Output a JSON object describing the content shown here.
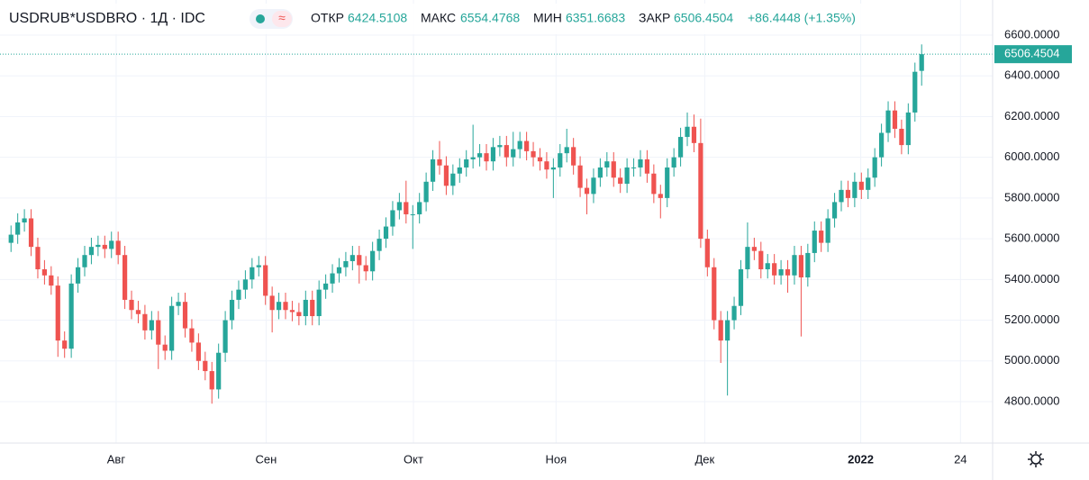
{
  "header": {
    "symbol": "USDRUB*USDBRO · 1Д · IDC",
    "open_label": "ОТКР",
    "open": "6424.5108",
    "high_label": "МАКС",
    "high": "6554.4768",
    "low_label": "МИН",
    "low": "6351.6683",
    "close_label": "ЗАКР",
    "close": "6506.4504",
    "change": "+86.4448 (+1.35%)",
    "last_price": "6506.4504"
  },
  "chart_data": {
    "type": "candlestick",
    "up_color": "#26a69a",
    "down_color": "#ef5350",
    "grid": true,
    "xlim": [
      -0.3,
      146.6
    ],
    "xticks": [
      {
        "value": 15.7,
        "label": "Авг"
      },
      {
        "value": 38.1,
        "label": "Сен"
      },
      {
        "value": 60.1,
        "label": "Окт"
      },
      {
        "value": 81.4,
        "label": "Ноя"
      },
      {
        "value": 103.6,
        "label": "Дек"
      },
      {
        "value": 126.9,
        "label": "2022"
      },
      {
        "value": 141.8,
        "label": "24"
      }
    ],
    "ylim": [
      4596.5,
      6772.5
    ],
    "yticks": [
      {
        "value": 4800,
        "label": "4800.0000"
      },
      {
        "value": 5000,
        "label": "5000.0000"
      },
      {
        "value": 5200,
        "label": "5200.0000"
      },
      {
        "value": 5400,
        "label": "5400.0000"
      },
      {
        "value": 5600,
        "label": "5600.0000"
      },
      {
        "value": 5800,
        "label": "5800.0000"
      },
      {
        "value": 6000,
        "label": "6000.0000"
      },
      {
        "value": 6200,
        "label": "6200.0000"
      },
      {
        "value": 6400,
        "label": "6400.0000"
      },
      {
        "value": 6600,
        "label": "6600.0000"
      }
    ],
    "open": [
      5580,
      5620,
      5680,
      5700,
      5560,
      5450,
      5420,
      5370,
      5100,
      5060,
      5380,
      5460,
      5520,
      5560,
      5570,
      5550,
      5590,
      5520,
      5300,
      5250,
      5230,
      5150,
      5200,
      5080,
      5050,
      5270,
      5290,
      5160,
      5090,
      5000,
      4950,
      4860,
      5040,
      5200,
      5300,
      5350,
      5400,
      5460,
      5470,
      5320,
      5250,
      5290,
      5250,
      5240,
      5220,
      5300,
      5220,
      5350,
      5380,
      5430,
      5460,
      5490,
      5520,
      5470,
      5440,
      5540,
      5600,
      5660,
      5740,
      5780,
      5720,
      5720,
      5780,
      5880,
      5990,
      5960,
      5860,
      5920,
      5950,
      5990,
      6000,
      6020,
      5980,
      6050,
      6060,
      6000,
      6040,
      6080,
      6030,
      6000,
      5980,
      5940,
      5950,
      6020,
      6050,
      5960,
      5850,
      5820,
      5900,
      5950,
      5980,
      5900,
      5870,
      5950,
      5950,
      5990,
      5920,
      5820,
      5800,
      5950,
      6000,
      6100,
      6150,
      6070,
      5600,
      5460,
      5200,
      5100,
      5200,
      5270,
      5450,
      5560,
      5540,
      5450,
      5480,
      5420,
      5450,
      5420,
      5520,
      5410,
      5530,
      5640,
      5580,
      5700,
      5780,
      5840,
      5800,
      5880,
      5840,
      5900,
      6000,
      6120,
      6230,
      6140,
      6060,
      6220,
      6424.5108
    ],
    "high": [
      5665,
      5725,
      5745,
      5745,
      5605,
      5495,
      5465,
      5415,
      5145,
      5425,
      5505,
      5565,
      5605,
      5615,
      5615,
      5635,
      5635,
      5565,
      5345,
      5295,
      5275,
      5245,
      5245,
      5125,
      5315,
      5335,
      5335,
      5205,
      5135,
      5045,
      4995,
      5085,
      5245,
      5345,
      5395,
      5445,
      5505,
      5515,
      5515,
      5365,
      5335,
      5335,
      5295,
      5285,
      5345,
      5345,
      5395,
      5425,
      5475,
      5505,
      5535,
      5565,
      5565,
      5515,
      5585,
      5645,
      5705,
      5785,
      5825,
      5885,
      5765,
      5825,
      5925,
      6035,
      6080,
      6005,
      5965,
      5995,
      6035,
      6160,
      6065,
      6065,
      6095,
      6105,
      6105,
      6125,
      6125,
      6125,
      6075,
      6045,
      6025,
      5995,
      6065,
      6140,
      6095,
      6005,
      5895,
      5945,
      5995,
      6025,
      6025,
      5945,
      5995,
      5995,
      6035,
      6035,
      5965,
      5865,
      5995,
      6045,
      6145,
      6220,
      6210,
      6190,
      5645,
      5505,
      5245,
      5245,
      5315,
      5495,
      5680,
      5605,
      5585,
      5525,
      5525,
      5495,
      5495,
      5565,
      5565,
      5575,
      5685,
      5685,
      5745,
      5825,
      5885,
      5885,
      5925,
      5925,
      5945,
      6045,
      6165,
      6275,
      6275,
      6185,
      6265,
      6465,
      6554.4768
    ],
    "low": [
      5535,
      5575,
      5635,
      5515,
      5405,
      5375,
      5325,
      5020,
      5015,
      5015,
      5335,
      5415,
      5475,
      5515,
      5505,
      5505,
      5475,
      5255,
      5205,
      5185,
      5105,
      5105,
      4960,
      5005,
      5005,
      5225,
      5115,
      5045,
      4955,
      4905,
      4790,
      4815,
      4995,
      5155,
      5255,
      5305,
      5355,
      5415,
      5275,
      5140,
      5205,
      5205,
      5195,
      5175,
      5175,
      5175,
      5175,
      5305,
      5335,
      5385,
      5415,
      5445,
      5380,
      5395,
      5395,
      5495,
      5555,
      5615,
      5695,
      5675,
      5550,
      5675,
      5735,
      5835,
      5915,
      5815,
      5815,
      5875,
      5905,
      5945,
      5955,
      5935,
      5935,
      6005,
      5955,
      5955,
      5995,
      5985,
      5955,
      5935,
      5895,
      5800,
      5905,
      5975,
      5915,
      5805,
      5720,
      5775,
      5855,
      5905,
      5855,
      5825,
      5825,
      5905,
      5905,
      5875,
      5775,
      5700,
      5755,
      5905,
      5955,
      6055,
      6025,
      5555,
      5415,
      5155,
      4990,
      4830,
      5155,
      5225,
      5405,
      5495,
      5405,
      5405,
      5375,
      5375,
      5335,
      5375,
      5120,
      5365,
      5485,
      5535,
      5535,
      5655,
      5735,
      5755,
      5755,
      5795,
      5795,
      5855,
      5955,
      6075,
      6095,
      6015,
      6015,
      6175,
      6351.6683
    ],
    "close": [
      5620,
      5680,
      5700,
      5560,
      5450,
      5420,
      5370,
      5100,
      5060,
      5380,
      5460,
      5520,
      5560,
      5570,
      5550,
      5590,
      5520,
      5300,
      5250,
      5230,
      5150,
      5200,
      5080,
      5050,
      5270,
      5290,
      5160,
      5090,
      5000,
      4950,
      4860,
      5040,
      5200,
      5300,
      5350,
      5400,
      5460,
      5470,
      5320,
      5250,
      5290,
      5250,
      5240,
      5220,
      5300,
      5220,
      5350,
      5380,
      5430,
      5460,
      5490,
      5520,
      5470,
      5440,
      5540,
      5600,
      5660,
      5740,
      5780,
      5720,
      5720,
      5780,
      5880,
      5990,
      5960,
      5860,
      5920,
      5950,
      5990,
      6000,
      6020,
      5980,
      6050,
      6060,
      6000,
      6040,
      6080,
      6030,
      6000,
      5980,
      5940,
      5950,
      6020,
      6050,
      5960,
      5850,
      5820,
      5900,
      5950,
      5980,
      5900,
      5870,
      5950,
      5950,
      5990,
      5920,
      5820,
      5800,
      5950,
      6000,
      6100,
      6150,
      6070,
      5600,
      5460,
      5200,
      5100,
      5200,
      5270,
      5450,
      5560,
      5540,
      5450,
      5480,
      5420,
      5450,
      5420,
      5520,
      5410,
      5530,
      5640,
      5580,
      5700,
      5780,
      5840,
      5800,
      5880,
      5840,
      5900,
      6000,
      6120,
      6230,
      6140,
      6060,
      6220,
      6420.0056,
      6506.4504
    ]
  }
}
